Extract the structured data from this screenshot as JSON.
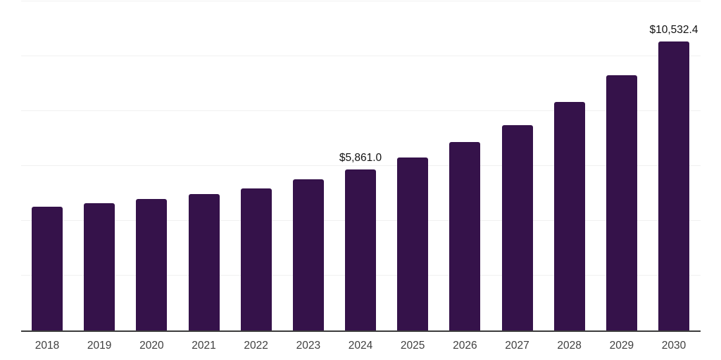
{
  "chart_data": {
    "type": "bar",
    "categories": [
      "2018",
      "2019",
      "2020",
      "2021",
      "2022",
      "2023",
      "2024",
      "2025",
      "2026",
      "2027",
      "2028",
      "2029",
      "2030"
    ],
    "values": [
      4510,
      4640,
      4795,
      4975,
      5180,
      5515,
      5861.0,
      6310,
      6870,
      7490,
      8330,
      9310,
      10532.4
    ],
    "data_labels": [
      "",
      "",
      "",
      "",
      "",
      "",
      "$5,861.0",
      "",
      "",
      "",
      "",
      "",
      "$10,532.4"
    ],
    "title": "",
    "xlabel": "",
    "ylabel": "",
    "ylim": [
      0,
      12000
    ],
    "gridline_values": [
      2000,
      4000,
      6000,
      8000,
      10000,
      12000
    ],
    "grid": true,
    "legend_position": "none",
    "colors": {
      "bar": "#35124a",
      "axis_line": "#3c3c3c",
      "gridline": "#f1f1f1",
      "value_label": "#111111",
      "tick_label": "#404040",
      "background": "#ffffff"
    }
  }
}
